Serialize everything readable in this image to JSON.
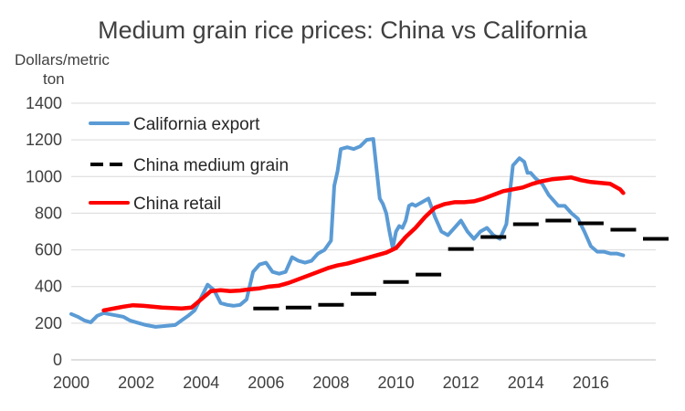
{
  "chart_data": {
    "type": "line",
    "title": "Medium grain rice prices: China vs California",
    "ylabel_line1": "Dollars/metric",
    "ylabel_line2": "ton",
    "xlabel": "",
    "xlim": [
      2000,
      2018
    ],
    "ylim": [
      0,
      1400
    ],
    "x_ticks": [
      2000,
      2002,
      2004,
      2006,
      2008,
      2010,
      2012,
      2014,
      2016
    ],
    "x_tick_labels": [
      "2000",
      "2002",
      "2004",
      "2006",
      "2008",
      "2010",
      "2012",
      "2014",
      "2016"
    ],
    "y_ticks": [
      0,
      200,
      400,
      600,
      800,
      1000,
      1200,
      1400
    ],
    "y_tick_labels": [
      "0",
      "200",
      "400",
      "600",
      "800",
      "1000",
      "1200",
      "1400"
    ],
    "grid": true,
    "legend_position": "top-left",
    "series": [
      {
        "name": "California export",
        "color": "#5b9bd5",
        "style": "solid",
        "x": [
          2000.0,
          2000.2,
          2000.4,
          2000.6,
          2000.8,
          2001.0,
          2001.3,
          2001.6,
          2001.8,
          2002.0,
          2002.3,
          2002.6,
          2002.9,
          2003.2,
          2003.4,
          2003.6,
          2003.8,
          2004.0,
          2004.2,
          2004.4,
          2004.6,
          2004.8,
          2005.0,
          2005.2,
          2005.4,
          2005.6,
          2005.8,
          2006.0,
          2006.2,
          2006.4,
          2006.6,
          2006.8,
          2007.0,
          2007.2,
          2007.4,
          2007.6,
          2007.8,
          2008.0,
          2008.1,
          2008.2,
          2008.3,
          2008.5,
          2008.7,
          2008.9,
          2009.1,
          2009.3,
          2009.5,
          2009.6,
          2009.7,
          2009.8,
          2009.9,
          2010.0,
          2010.1,
          2010.2,
          2010.3,
          2010.4,
          2010.5,
          2010.6,
          2010.8,
          2011.0,
          2011.2,
          2011.4,
          2011.6,
          2011.8,
          2012.0,
          2012.2,
          2012.4,
          2012.6,
          2012.8,
          2013.0,
          2013.2,
          2013.4,
          2013.6,
          2013.8,
          2013.95,
          2014.05,
          2014.15,
          2014.3,
          2014.5,
          2014.7,
          2014.9,
          2015.0,
          2015.2,
          2015.4,
          2015.6,
          2015.8,
          2016.0,
          2016.2,
          2016.4,
          2016.6,
          2016.8,
          2017.0
        ],
        "y": [
          250,
          235,
          215,
          205,
          240,
          255,
          245,
          235,
          215,
          205,
          190,
          180,
          185,
          190,
          215,
          240,
          270,
          340,
          410,
          380,
          310,
          300,
          295,
          300,
          330,
          480,
          520,
          530,
          480,
          470,
          480,
          560,
          540,
          530,
          540,
          580,
          600,
          650,
          950,
          1030,
          1150,
          1160,
          1150,
          1165,
          1200,
          1205,
          880,
          850,
          800,
          700,
          610,
          700,
          730,
          720,
          760,
          840,
          850,
          840,
          860,
          880,
          780,
          700,
          680,
          720,
          760,
          700,
          660,
          700,
          720,
          680,
          660,
          740,
          1060,
          1100,
          1080,
          1020,
          1020,
          990,
          960,
          900,
          860,
          840,
          840,
          800,
          770,
          700,
          620,
          590,
          590,
          580,
          580,
          570
        ]
      },
      {
        "name": "China medium grain",
        "color": "#000000",
        "style": "dashed",
        "x": [
          2006.0,
          2007.0,
          2008.0,
          2009.0,
          2010.0,
          2011.0,
          2012.0,
          2013.0,
          2014.0,
          2015.0,
          2016.0,
          2017.0,
          2018.0
        ],
        "y": [
          280,
          285,
          300,
          360,
          425,
          465,
          605,
          670,
          740,
          760,
          745,
          710,
          660
        ]
      },
      {
        "name": "China retail",
        "color": "#ff0000",
        "style": "solid",
        "x": [
          2001.0,
          2001.3,
          2001.6,
          2001.9,
          2002.2,
          2002.5,
          2002.8,
          2003.1,
          2003.4,
          2003.7,
          2004.0,
          2004.3,
          2004.6,
          2004.9,
          2005.2,
          2005.5,
          2005.8,
          2006.1,
          2006.4,
          2006.7,
          2007.0,
          2007.3,
          2007.6,
          2007.9,
          2008.2,
          2008.5,
          2008.8,
          2009.1,
          2009.4,
          2009.7,
          2010.0,
          2010.3,
          2010.6,
          2010.9,
          2011.2,
          2011.5,
          2011.8,
          2012.1,
          2012.4,
          2012.7,
          2013.0,
          2013.3,
          2013.6,
          2013.9,
          2014.2,
          2014.5,
          2014.8,
          2015.1,
          2015.4,
          2015.7,
          2016.0,
          2016.3,
          2016.6,
          2016.9,
          2017.0
        ],
        "y": [
          270,
          280,
          290,
          298,
          295,
          290,
          285,
          283,
          280,
          285,
          330,
          375,
          380,
          375,
          378,
          385,
          390,
          400,
          405,
          420,
          440,
          460,
          480,
          500,
          515,
          525,
          540,
          555,
          570,
          585,
          610,
          670,
          720,
          780,
          830,
          850,
          860,
          860,
          865,
          880,
          900,
          920,
          930,
          940,
          960,
          975,
          985,
          990,
          995,
          980,
          970,
          965,
          960,
          930,
          910
        ]
      }
    ]
  }
}
